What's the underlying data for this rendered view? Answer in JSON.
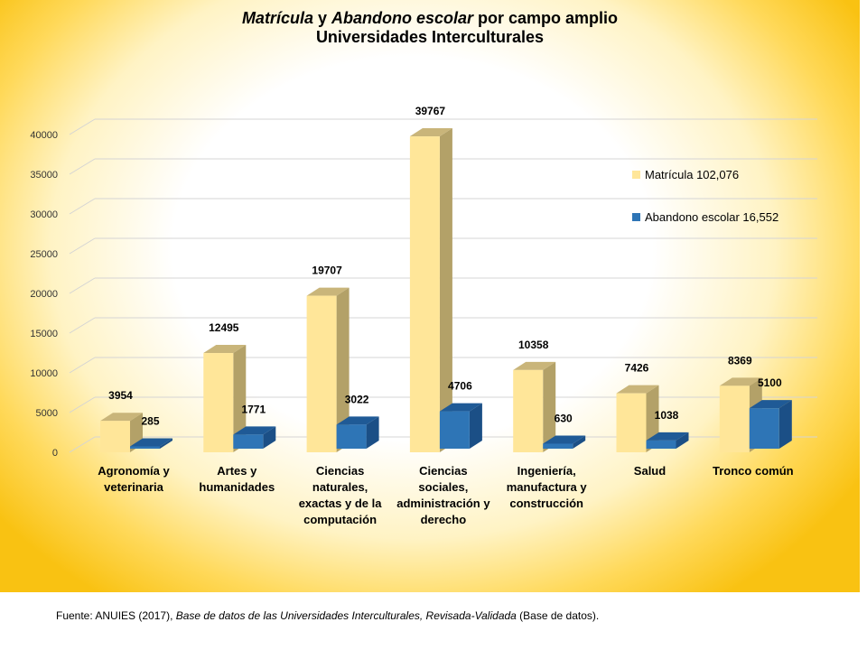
{
  "title": {
    "part1": "Matrícula",
    "part2": " y ",
    "part3": "Abandono escolar",
    "part4": " por campo amplio",
    "line2": "Universidades Interculturales"
  },
  "footer": {
    "prefix": "Fuente: ANUIES (2017),  ",
    "italic": " Base de datos de las Universidades  Interculturales, Revisada-Validada",
    "suffix": "  (Base de datos)."
  },
  "legend": {
    "matricula": "Matrícula 102,076",
    "abandono": "Abandono escolar  16,552"
  },
  "colors": {
    "matricula_front": "#ffe699",
    "matricula_top": "#c9b57a",
    "matricula_side": "#b3a168",
    "abandono_front": "#2e75b6",
    "abandono_top": "#1f5a96",
    "abandono_side": "#1b4f86"
  },
  "chart_data": {
    "type": "bar",
    "categories": [
      "Agronomía y\nveterinaria",
      "Artes y\nhumanidades",
      "Ciencias\nnaturales,\nexactas y de la\ncomputación",
      "Ciencias\nsociales,\nadministración y\nderecho",
      "Ingeniería,\nmanufactura y\nconstrucción",
      "Salud",
      "Tronco común"
    ],
    "series": [
      {
        "name": "Matrícula 102,076",
        "values": [
          3954,
          12495,
          19707,
          39767,
          10358,
          7426,
          8369
        ]
      },
      {
        "name": "Abandono escolar  16,552",
        "values": [
          285,
          1771,
          3022,
          4706,
          630,
          1038,
          5100
        ]
      }
    ],
    "yticks": [
      "0",
      "5000",
      "10000",
      "15000",
      "20000",
      "25000",
      "30000",
      "35000",
      "40000"
    ],
    "ylim": [
      0,
      40000
    ],
    "grid": true,
    "legend_position": "right"
  }
}
